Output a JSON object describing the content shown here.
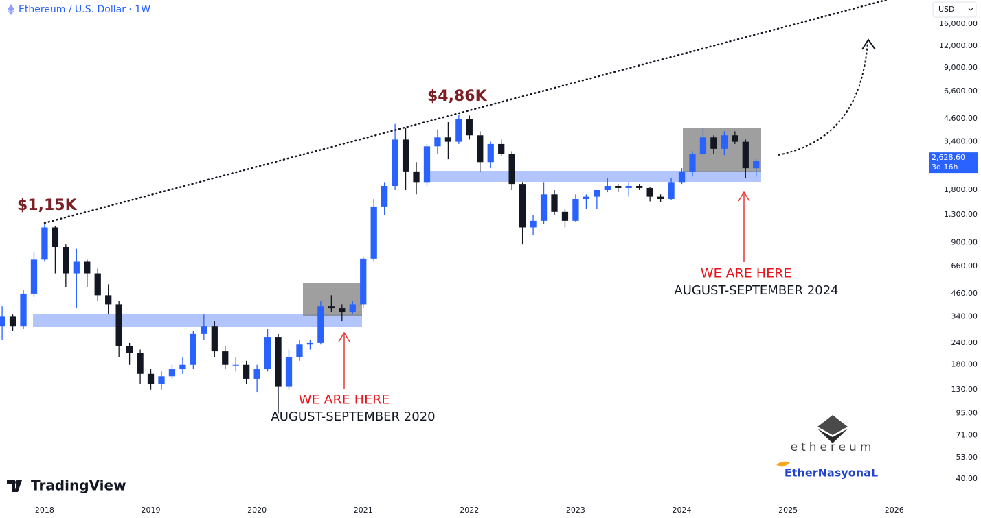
{
  "chart_data": {
    "type": "candlestick",
    "title": "Ethereum / U.S. Dollar · 1W",
    "currency": "USD",
    "x": [
      2017.6,
      2017.7,
      2017.8,
      2017.9,
      2018.0,
      2018.1,
      2018.2,
      2018.3,
      2018.4,
      2018.5,
      2018.6,
      2018.7,
      2018.8,
      2018.9,
      2019.0,
      2019.1,
      2019.2,
      2019.3,
      2019.4,
      2019.5,
      2019.6,
      2019.7,
      2019.8,
      2019.9,
      2020.0,
      2020.1,
      2020.2,
      2020.3,
      2020.4,
      2020.5,
      2020.6,
      2020.7,
      2020.8,
      2020.9,
      2021.0,
      2021.1,
      2021.2,
      2021.3,
      2021.4,
      2021.5,
      2021.6,
      2021.7,
      2021.8,
      2021.9,
      2022.0,
      2022.1,
      2022.2,
      2022.3,
      2022.4,
      2022.5,
      2022.6,
      2022.7,
      2022.8,
      2022.9,
      2023.0,
      2023.1,
      2023.2,
      2023.3,
      2023.4,
      2023.5,
      2023.6,
      2023.7,
      2023.8,
      2023.9,
      2024.0,
      2024.1,
      2024.2,
      2024.3,
      2024.4,
      2024.5,
      2024.6,
      2024.7
    ],
    "open": [
      300,
      340,
      300,
      460,
      720,
      1100,
      850,
      600,
      700,
      600,
      450,
      400,
      230,
      210,
      160,
      140,
      155,
      170,
      180,
      270,
      300,
      215,
      180,
      180,
      150,
      170,
      260,
      135,
      200,
      235,
      240,
      390,
      380,
      360,
      400,
      730,
      1450,
      1900,
      3500,
      2300,
      2000,
      3200,
      3600,
      3400,
      4600,
      3700,
      2600,
      3300,
      2900,
      1950,
      1100,
      1200,
      1700,
      1350,
      1200,
      1600,
      1650,
      1800,
      1900,
      1850,
      1900,
      1850,
      1650,
      1600,
      2000,
      2300,
      2900,
      3600,
      3100,
      3700,
      3400,
      2400
    ],
    "high": [
      390,
      350,
      480,
      800,
      1150,
      1120,
      880,
      830,
      720,
      640,
      520,
      420,
      240,
      220,
      170,
      165,
      180,
      200,
      280,
      350,
      320,
      230,
      200,
      190,
      180,
      290,
      270,
      220,
      250,
      250,
      420,
      450,
      400,
      420,
      750,
      1600,
      2000,
      4300,
      4100,
      2600,
      3300,
      4000,
      4400,
      4860,
      4800,
      3900,
      3400,
      3500,
      3000,
      2000,
      1300,
      2000,
      1800,
      1400,
      1700,
      1700,
      1800,
      2100,
      1950,
      2000,
      1950,
      1880,
      1700,
      2100,
      2400,
      3000,
      4050,
      3700,
      3900,
      3900,
      3500,
      2700
    ],
    "low": [
      250,
      280,
      290,
      440,
      700,
      600,
      500,
      380,
      500,
      420,
      350,
      200,
      180,
      140,
      130,
      130,
      150,
      160,
      170,
      250,
      200,
      170,
      165,
      140,
      125,
      165,
      95,
      130,
      190,
      220,
      235,
      360,
      320,
      350,
      380,
      700,
      1300,
      1800,
      1800,
      1700,
      1900,
      2900,
      2700,
      3300,
      3500,
      2300,
      2400,
      2800,
      1800,
      880,
      1000,
      1150,
      1300,
      1100,
      1180,
      1400,
      1400,
      1750,
      1750,
      1650,
      1800,
      1550,
      1530,
      1580,
      1950,
      2150,
      2850,
      2900,
      2850,
      3300,
      2100,
      2150
    ],
    "close": [
      340,
      300,
      460,
      720,
      1100,
      850,
      600,
      700,
      600,
      450,
      400,
      230,
      210,
      160,
      140,
      155,
      170,
      180,
      270,
      300,
      215,
      180,
      180,
      150,
      170,
      260,
      135,
      200,
      235,
      240,
      390,
      380,
      360,
      400,
      730,
      1450,
      1900,
      3500,
      2300,
      2000,
      3200,
      3600,
      3400,
      4600,
      3700,
      2600,
      3300,
      2900,
      1950,
      1100,
      1200,
      1700,
      1350,
      1200,
      1600,
      1650,
      1800,
      1900,
      1850,
      1900,
      1850,
      1650,
      1600,
      2000,
      2300,
      2900,
      3600,
      3100,
      3700,
      3400,
      2400,
      2628.6
    ],
    "up_color": "#2962ff",
    "down_color": "#131722",
    "log_scale": true,
    "grid": false,
    "xlim": [
      2017.58,
      2026.28
    ],
    "xticks": [
      2018,
      2019,
      2020,
      2021,
      2022,
      2023,
      2024,
      2025,
      2026
    ],
    "ylim": [
      30,
      22000
    ],
    "yticks": [
      {
        "value": 16000,
        "label": "16,000.00"
      },
      {
        "value": 12000,
        "label": "12,000.00"
      },
      {
        "value": 9000,
        "label": "9,000.00"
      },
      {
        "value": 6600,
        "label": "6,600.00"
      },
      {
        "value": 4600,
        "label": "4,600.00"
      },
      {
        "value": 3400,
        "label": "3,400.00"
      },
      {
        "value": 1800,
        "label": "1,800.00"
      },
      {
        "value": 1300,
        "label": "1,300.00"
      },
      {
        "value": 900,
        "label": "900.00"
      },
      {
        "value": 660,
        "label": "660.00"
      },
      {
        "value": 460,
        "label": "460.00"
      },
      {
        "value": 340,
        "label": "340.00"
      },
      {
        "value": 240,
        "label": "240.00"
      },
      {
        "value": 180,
        "label": "180.00"
      },
      {
        "value": 130,
        "label": "130.00"
      },
      {
        "value": 95,
        "label": "95.00"
      },
      {
        "value": 71,
        "label": "71.00"
      },
      {
        "value": 53,
        "label": "53.00"
      },
      {
        "value": 40,
        "label": "40.00"
      }
    ],
    "last_price": {
      "value": 2628.6,
      "label": "2,628.60"
    },
    "countdown": "3d 16h",
    "annotations": {
      "peak_2018": "$1,15K",
      "peak_2021": "$4,86K",
      "here_2020": "WE ARE HERE",
      "date_2020": "AUGUST-SEPTEMBER 2020",
      "here_2024": "WE ARE HERE",
      "date_2024": "AUGUST-SEPTEMBER 2024"
    }
  },
  "brand": "TradingView",
  "watermark": {
    "logo_text": "ethereum",
    "handle": "EtherNasyonaL"
  }
}
